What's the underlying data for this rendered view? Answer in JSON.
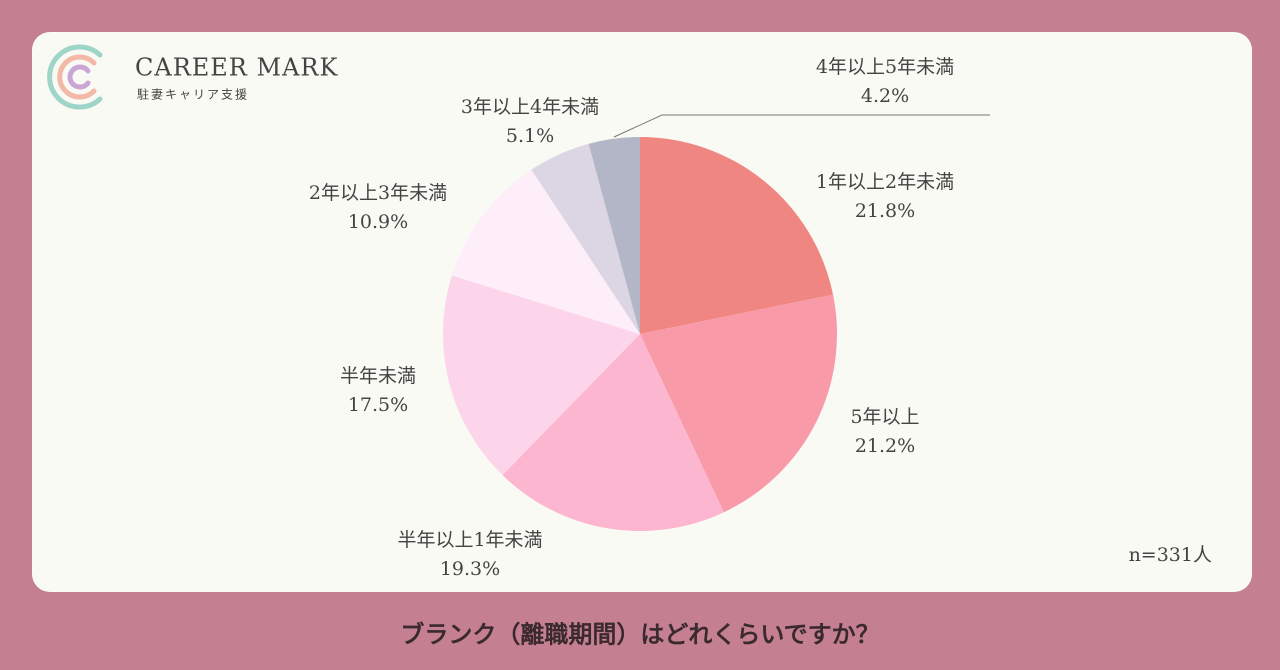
{
  "logo": {
    "name": "CAREER MARK",
    "tagline": "駐妻キャリア支援"
  },
  "chart_data": {
    "type": "pie",
    "title": "ブランク（離職期間）はどれくらいですか？",
    "note": "n=331人",
    "categories": [
      "1年以上2年未満",
      "5年以上",
      "半年以上1年未満",
      "半年未満",
      "2年以上3年未満",
      "3年以上4年未満",
      "4年以上5年未満"
    ],
    "values": [
      21.8,
      21.2,
      19.3,
      17.5,
      10.9,
      5.1,
      4.2
    ],
    "value_labels": [
      "21.8%",
      "21.2%",
      "19.3%",
      "17.5%",
      "10.9%",
      "5.1%",
      "4.2%"
    ],
    "colors": [
      "#f08682",
      "#f99aa8",
      "#fcb6cf",
      "#fdd5eb",
      "#fdeefa",
      "#dcd5e3",
      "#b3b6c6"
    ]
  }
}
